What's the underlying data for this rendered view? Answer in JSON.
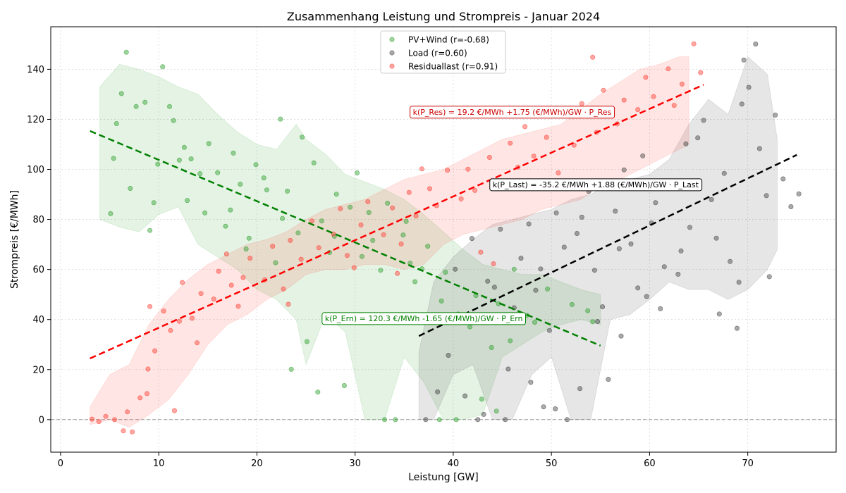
{
  "chart_data": {
    "type": "scatter",
    "title": "Zusammenhang Leistung und Strompreis - Januar 2024",
    "xlabel": "Leistung [GW]",
    "ylabel": "Strompreis [€/MWh]",
    "xlim": [
      -1,
      79
    ],
    "ylim": [
      -13,
      157
    ],
    "xticks": [
      "0",
      "10",
      "20",
      "30",
      "40",
      "50",
      "60",
      "70"
    ],
    "yticks": [
      "0",
      "20",
      "40",
      "60",
      "80",
      "100",
      "120",
      "140"
    ],
    "grid": true,
    "zero_line": true,
    "legend_position": "top-center",
    "series": [
      {
        "name": "PV+Wind (r=-0.68)",
        "color": "#2ca02c",
        "fit": {
          "intercept": 120.3,
          "slope": -1.65,
          "x_range": [
            3,
            55
          ]
        },
        "annotation": "k(P_Ern) = 120.3 €/MWh -1.65 (€/MWh)/GW · P_Ern",
        "band": {
          "x": [
            4,
            6,
            8,
            10,
            12,
            14,
            16,
            18,
            20,
            22,
            24,
            25,
            27,
            29,
            31,
            33,
            35,
            37,
            39,
            41,
            43,
            45,
            47,
            49,
            51,
            53,
            55
          ],
          "lower": [
            80,
            77,
            75,
            82,
            85,
            70,
            65,
            60,
            52,
            48,
            40,
            22,
            42,
            35,
            0,
            0,
            25,
            15,
            0,
            0,
            2,
            25,
            30,
            35,
            38,
            40,
            38
          ],
          "upper": [
            133,
            142,
            140,
            137,
            133,
            130,
            122,
            115,
            110,
            108,
            118,
            112,
            106,
            98,
            95,
            92,
            88,
            82,
            75,
            68,
            62,
            60,
            58,
            58,
            55,
            52,
            50
          ]
        },
        "points": [
          [
            5.1,
            82.3
          ],
          [
            6.2,
            130.3
          ],
          [
            7.7,
            125.1
          ],
          [
            5.4,
            104.4
          ],
          [
            5.7,
            118.3
          ],
          [
            6.7,
            146.8
          ],
          [
            9.9,
            102.1
          ],
          [
            10.4,
            141.0
          ],
          [
            9.1,
            75.6
          ],
          [
            8.6,
            126.8
          ],
          [
            11.1,
            125.1
          ],
          [
            13.3,
            104.2
          ],
          [
            14.7,
            82.6
          ],
          [
            12.1,
            103.7
          ],
          [
            12.9,
            87.6
          ],
          [
            15.1,
            110.3
          ],
          [
            16.0,
            98.7
          ],
          [
            18.3,
            94.1
          ],
          [
            17.6,
            106.5
          ],
          [
            19.2,
            72.5
          ],
          [
            21.0,
            91.8
          ],
          [
            22.6,
            80.4
          ],
          [
            20.7,
            96.6
          ],
          [
            24.2,
            74.6
          ],
          [
            23.1,
            91.3
          ],
          [
            25.8,
            102.6
          ],
          [
            26.6,
            79.4
          ],
          [
            27.4,
            66.8
          ],
          [
            28.1,
            90.1
          ],
          [
            29.5,
            84.9
          ],
          [
            30.7,
            65.2
          ],
          [
            31.4,
            82.8
          ],
          [
            32.6,
            59.7
          ],
          [
            33.3,
            86.5
          ],
          [
            34.9,
            73.8
          ],
          [
            35.6,
            62.5
          ],
          [
            36.1,
            55.1
          ],
          [
            37.4,
            69.3
          ],
          [
            38.8,
            47.4
          ],
          [
            39.2,
            58.9
          ],
          [
            40.5,
            42.2
          ],
          [
            41.7,
            37.1
          ],
          [
            42.3,
            49.6
          ],
          [
            43.9,
            28.8
          ],
          [
            44.6,
            46.3
          ],
          [
            45.8,
            31.5
          ],
          [
            46.2,
            60.1
          ],
          [
            47.5,
            41.7
          ],
          [
            48.3,
            38.9
          ],
          [
            49.6,
            52.2
          ],
          [
            52.1,
            46.0
          ],
          [
            53.7,
            43.5
          ],
          [
            54.2,
            39.1
          ],
          [
            33.0,
            0.0
          ],
          [
            34.1,
            0.0
          ],
          [
            38.6,
            0.0
          ],
          [
            40.3,
            0.0
          ],
          [
            42.9,
            8.2
          ],
          [
            44.4,
            3.4
          ],
          [
            23.5,
            20.1
          ],
          [
            25.1,
            31.2
          ],
          [
            26.2,
            11.0
          ],
          [
            28.9,
            13.6
          ],
          [
            11.5,
            119.5
          ],
          [
            14.2,
            98.3
          ],
          [
            17.3,
            83.8
          ],
          [
            19.9,
            101.9
          ],
          [
            22.4,
            120.1
          ],
          [
            24.6,
            112.9
          ],
          [
            30.2,
            98.6
          ],
          [
            7.1,
            92.4
          ],
          [
            9.5,
            86.7
          ],
          [
            12.6,
            108.8
          ],
          [
            16.8,
            77.3
          ],
          [
            18.9,
            68.2
          ],
          [
            21.9,
            62.7
          ],
          [
            27.9,
            73.3
          ],
          [
            31.8,
            71.6
          ],
          [
            35.2,
            79.2
          ],
          [
            36.8,
            60.3
          ]
        ]
      },
      {
        "name": "Load (r=0.60)",
        "color": "#404040",
        "fit": {
          "intercept": -35.2,
          "slope": 1.88,
          "x_range": [
            36.5,
            75
          ]
        },
        "annotation": "k(P_Last) = -35.2 €/MWh +1.88 (€/MWh)/GW · P_Last",
        "band": {
          "x": [
            36.5,
            38,
            40,
            42,
            44,
            46,
            48,
            50,
            52,
            54,
            56,
            58,
            60,
            62,
            64,
            66,
            68,
            70,
            72,
            73
          ],
          "lower": [
            0,
            0,
            18,
            22,
            0,
            0,
            18,
            25,
            0,
            0,
            40,
            42,
            48,
            55,
            52,
            52,
            48,
            52,
            60,
            68
          ],
          "upper": [
            27,
            55,
            65,
            72,
            78,
            80,
            82,
            84,
            88,
            90,
            94,
            96,
            98,
            104,
            118,
            128,
            122,
            145,
            138,
            112
          ]
        },
        "points": [
          [
            40.2,
            60.1
          ],
          [
            41.9,
            72.4
          ],
          [
            43.5,
            55.3
          ],
          [
            44.8,
            76.1
          ],
          [
            45.6,
            20.2
          ],
          [
            46.9,
            64.5
          ],
          [
            47.7,
            78.2
          ],
          [
            48.4,
            51.7
          ],
          [
            49.8,
            35.6
          ],
          [
            50.5,
            82.6
          ],
          [
            51.3,
            68.9
          ],
          [
            52.6,
            74.4
          ],
          [
            53.8,
            91.2
          ],
          [
            54.4,
            59.7
          ],
          [
            55.2,
            45.1
          ],
          [
            56.5,
            83.3
          ],
          [
            57.4,
            99.8
          ],
          [
            58.1,
            70.2
          ],
          [
            59.3,
            105.4
          ],
          [
            60.6,
            86.7
          ],
          [
            61.5,
            61.1
          ],
          [
            62.4,
            93.5
          ],
          [
            63.7,
            110.2
          ],
          [
            64.1,
            76.8
          ],
          [
            65.5,
            119.6
          ],
          [
            66.3,
            87.9
          ],
          [
            67.6,
            98.4
          ],
          [
            68.2,
            63.2
          ],
          [
            69.4,
            126.1
          ],
          [
            70.1,
            132.8
          ],
          [
            71.2,
            108.3
          ],
          [
            71.9,
            89.5
          ],
          [
            72.8,
            121.7
          ],
          [
            73.6,
            96.2
          ],
          [
            74.4,
            85.1
          ],
          [
            75.2,
            90.2
          ],
          [
            70.8,
            150.1
          ],
          [
            69.6,
            143.7
          ],
          [
            68.9,
            36.5
          ],
          [
            67.1,
            42.2
          ],
          [
            64.9,
            112.6
          ],
          [
            62.9,
            58.1
          ],
          [
            61.1,
            44.3
          ],
          [
            59.7,
            49.2
          ],
          [
            58.8,
            52.6
          ],
          [
            57.1,
            33.4
          ],
          [
            55.8,
            16.1
          ],
          [
            54.7,
            39.2
          ],
          [
            52.9,
            12.4
          ],
          [
            51.6,
            0.0
          ],
          [
            50.4,
            4.3
          ],
          [
            49.2,
            5.1
          ],
          [
            47.9,
            14.9
          ],
          [
            45.3,
            0.0
          ],
          [
            43.1,
            2.1
          ],
          [
            42.5,
            0.0
          ],
          [
            41.2,
            9.5
          ],
          [
            38.4,
            11.1
          ],
          [
            37.2,
            0.0
          ],
          [
            39.5,
            25.7
          ],
          [
            63.2,
            67.4
          ],
          [
            66.8,
            72.5
          ],
          [
            69.1,
            54.9
          ],
          [
            72.2,
            57.1
          ],
          [
            60.2,
            78.6
          ],
          [
            56.9,
            68.3
          ],
          [
            53.1,
            80.9
          ],
          [
            48.9,
            60.2
          ],
          [
            46.2,
            44.7
          ],
          [
            44.2,
            52.9
          ]
        ]
      },
      {
        "name": "Residuallast (r=0.91)",
        "color": "#ff3b30",
        "fit": {
          "intercept": 19.2,
          "slope": 1.75,
          "x_range": [
            3,
            65.5
          ]
        },
        "annotation": "k(P_Res) = 19.2 €/MWh +1.75 (€/MWh)/GW · P_Res",
        "band": {
          "x": [
            3,
            5,
            7,
            9,
            11,
            13,
            15,
            17,
            19,
            21,
            23,
            25,
            27,
            29,
            31,
            33,
            35,
            37,
            39,
            41,
            43,
            45,
            47,
            49,
            51,
            53,
            55,
            57,
            59,
            61,
            63,
            64
          ],
          "lower": [
            -2,
            0,
            -3,
            2,
            8,
            18,
            30,
            38,
            42,
            48,
            52,
            58,
            60,
            60,
            62,
            62,
            60,
            62,
            70,
            74,
            76,
            78,
            80,
            84,
            86,
            88,
            94,
            96,
            100,
            104,
            108,
            110
          ],
          "upper": [
            5,
            18,
            22,
            38,
            48,
            56,
            62,
            66,
            70,
            72,
            75,
            80,
            84,
            86,
            88,
            92,
            96,
            98,
            100,
            104,
            108,
            112,
            114,
            116,
            118,
            124,
            130,
            135,
            140,
            142,
            145,
            145
          ]
        },
        "points": [
          [
            3.2,
            0.2
          ],
          [
            3.9,
            -0.8
          ],
          [
            4.6,
            1.3
          ],
          [
            5.5,
            0.0
          ],
          [
            6.4,
            -4.5
          ],
          [
            7.3,
            -4.9
          ],
          [
            8.1,
            8.7
          ],
          [
            8.9,
            20.2
          ],
          [
            9.6,
            27.5
          ],
          [
            10.5,
            43.4
          ],
          [
            11.2,
            35.6
          ],
          [
            12.1,
            39.3
          ],
          [
            13.4,
            40.5
          ],
          [
            14.3,
            50.4
          ],
          [
            15.6,
            48.2
          ],
          [
            16.1,
            59.3
          ],
          [
            17.4,
            53.7
          ],
          [
            18.6,
            56.8
          ],
          [
            19.3,
            64.5
          ],
          [
            20.8,
            55.9
          ],
          [
            21.6,
            69.3
          ],
          [
            22.7,
            52.2
          ],
          [
            23.4,
            71.6
          ],
          [
            24.5,
            64.1
          ],
          [
            25.6,
            79.4
          ],
          [
            26.3,
            68.7
          ],
          [
            27.8,
            74.2
          ],
          [
            28.5,
            84.3
          ],
          [
            29.2,
            65.6
          ],
          [
            30.6,
            77.8
          ],
          [
            31.3,
            87.1
          ],
          [
            32.9,
            73.9
          ],
          [
            33.8,
            84.6
          ],
          [
            34.7,
            70.2
          ],
          [
            35.5,
            90.8
          ],
          [
            36.2,
            81.4
          ],
          [
            37.6,
            92.3
          ],
          [
            38.3,
            85.5
          ],
          [
            39.4,
            99.7
          ],
          [
            40.8,
            88.2
          ],
          [
            41.5,
            100.1
          ],
          [
            42.2,
            91.6
          ],
          [
            43.7,
            104.8
          ],
          [
            44.9,
            95.3
          ],
          [
            45.8,
            110.5
          ],
          [
            46.6,
            100.9
          ],
          [
            47.3,
            117.1
          ],
          [
            48.2,
            105.3
          ],
          [
            49.5,
            112.8
          ],
          [
            50.7,
            98.6
          ],
          [
            51.4,
            121.9
          ],
          [
            52.3,
            109.7
          ],
          [
            53.1,
            126.3
          ],
          [
            54.6,
            114.8
          ],
          [
            55.3,
            131.6
          ],
          [
            56.7,
            118.2
          ],
          [
            57.4,
            127.7
          ],
          [
            58.8,
            123.9
          ],
          [
            59.6,
            136.8
          ],
          [
            60.4,
            129.1
          ],
          [
            61.9,
            140.2
          ],
          [
            62.5,
            125.6
          ],
          [
            63.3,
            134.1
          ],
          [
            64.5,
            150.2
          ],
          [
            65.2,
            138.7
          ],
          [
            54.2,
            144.8
          ],
          [
            44.1,
            62.3
          ],
          [
            42.8,
            66.9
          ],
          [
            36.8,
            100.2
          ],
          [
            34.3,
            58.4
          ],
          [
            29.9,
            60.7
          ],
          [
            23.2,
            46.1
          ],
          [
            18.1,
            45.3
          ],
          [
            13.9,
            30.7
          ],
          [
            11.6,
            3.6
          ],
          [
            8.8,
            10.4
          ],
          [
            6.8,
            3.1
          ],
          [
            9.1,
            45.2
          ],
          [
            12.4,
            54.8
          ],
          [
            16.9,
            66.2
          ]
        ]
      }
    ]
  }
}
